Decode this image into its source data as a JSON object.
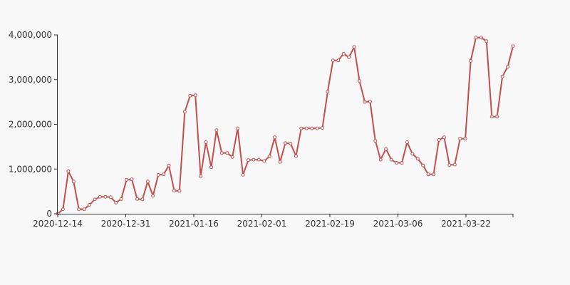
{
  "chart_data": {
    "type": "line",
    "title": "",
    "xlabel": "",
    "ylabel": "",
    "x_tick_labels": [
      "2020-12-14",
      "2020-12-31",
      "2021-01-16",
      "2021-02-01",
      "2021-02-19",
      "2021-03-06",
      "2021-03-22"
    ],
    "y_tick_labels": [
      "0",
      "1,000,000",
      "2,000,000",
      "3,000,000",
      "4,000,000"
    ],
    "ylim": [
      0,
      4000000
    ],
    "grid": false,
    "color": "#c0504d",
    "series": [
      {
        "values": [
          0,
          100000,
          950000,
          720000,
          100000,
          100000,
          200000,
          320000,
          380000,
          380000,
          370000,
          250000,
          330000,
          760000,
          770000,
          330000,
          320000,
          720000,
          400000,
          870000,
          880000,
          1080000,
          520000,
          510000,
          2280000,
          2640000,
          2650000,
          840000,
          1600000,
          1040000,
          1870000,
          1360000,
          1360000,
          1270000,
          1910000,
          870000,
          1200000,
          1210000,
          1210000,
          1180000,
          1280000,
          1710000,
          1160000,
          1580000,
          1570000,
          1290000,
          1910000,
          1910000,
          1910000,
          1910000,
          1920000,
          2730000,
          3430000,
          3430000,
          3580000,
          3500000,
          3730000,
          2970000,
          2500000,
          2510000,
          1630000,
          1210000,
          1450000,
          1210000,
          1140000,
          1140000,
          1600000,
          1340000,
          1230000,
          1080000,
          880000,
          880000,
          1650000,
          1710000,
          1090000,
          1100000,
          1680000,
          1680000,
          3420000,
          3940000,
          3940000,
          3860000,
          2170000,
          2170000,
          3070000,
          3290000,
          3750000
        ]
      }
    ]
  }
}
